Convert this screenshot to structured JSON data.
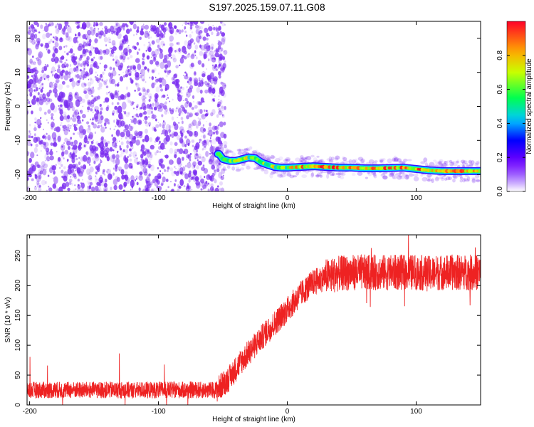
{
  "title": "S197.2025.159.07.11.G08",
  "colors": {
    "snr_line": "#ee2222",
    "scatter": "#7a2cf0",
    "axis": "#000000"
  },
  "chart_data": [
    {
      "type": "heatmap",
      "xlabel": "Height of straight line (km)",
      "ylabel": "Frequency (Hz)",
      "xlim": [
        -202,
        150
      ],
      "ylim": [
        -25,
        25
      ],
      "xticks": [
        -200,
        -100,
        0,
        100
      ],
      "xtick_labels": [
        "-200",
        "-100",
        "0",
        "100"
      ],
      "yticks": [
        -20,
        -10,
        0,
        10,
        20
      ],
      "ytick_labels": [
        "-20",
        "-10",
        "0",
        "10",
        "20"
      ],
      "noise_region_x": [
        -202,
        -48
      ],
      "ridge": {
        "x": [
          -53,
          -50,
          -45,
          -40,
          -35,
          -30,
          -25,
          -20,
          -15,
          -10,
          -5,
          0,
          10,
          20,
          30,
          40,
          50,
          60,
          70,
          80,
          90,
          100,
          110,
          120,
          130,
          140,
          150
        ],
        "y": [
          -14,
          -15.5,
          -16,
          -16,
          -15.5,
          -15,
          -15.2,
          -16.5,
          -17.2,
          -17.8,
          -18.0,
          -18.0,
          -17.8,
          -17.6,
          -17.8,
          -18.0,
          -18.0,
          -18.2,
          -18.2,
          -18.1,
          -18.0,
          -18.4,
          -18.8,
          -19.0,
          -19.0,
          -19.0,
          -19.0
        ]
      },
      "colorbar": {
        "label": "Normalized spectral amplitude",
        "range": [
          0,
          1
        ],
        "ticks": [
          0,
          0.2,
          0.4,
          0.6,
          0.8
        ],
        "tick_labels": [
          "0.0",
          "0.2",
          "0.4",
          "0.6",
          "0.8"
        ]
      }
    },
    {
      "type": "line",
      "xlabel": "Height of straight line (km)",
      "ylabel": "SNR (10 * v/v)",
      "xlim": [
        -202,
        150
      ],
      "ylim": [
        0,
        285
      ],
      "xticks": [
        -200,
        -100,
        0,
        100
      ],
      "xtick_labels": [
        "-200",
        "-100",
        "0",
        "100"
      ],
      "yticks": [
        0,
        50,
        100,
        150,
        200,
        250
      ],
      "ytick_labels": [
        "0",
        "50",
        "100",
        "150",
        "200",
        "250"
      ],
      "series": [
        {
          "x": [
            -200,
            -175,
            -150,
            -125,
            -100,
            -75,
            -55,
            -45,
            -35,
            -25,
            -15,
            -5,
            0,
            10,
            20,
            30,
            40,
            50,
            60,
            70,
            80,
            90,
            100,
            110,
            120,
            130,
            140,
            150
          ],
          "values": [
            25,
            25,
            25,
            25,
            25,
            25,
            25,
            45,
            75,
            100,
            125,
            148,
            160,
            185,
            205,
            215,
            220,
            222,
            222,
            222,
            222,
            222,
            222,
            220,
            222,
            222,
            222,
            222
          ]
        }
      ]
    }
  ]
}
